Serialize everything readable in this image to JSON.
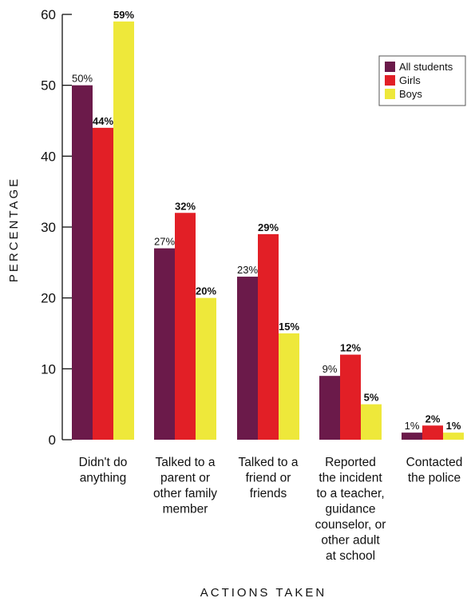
{
  "chart_data": {
    "type": "bar",
    "categories": [
      [
        "Didn't do",
        "anything"
      ],
      [
        "Talked to a",
        "parent or",
        "other family",
        "member"
      ],
      [
        "Talked to a",
        "friend or",
        "friends"
      ],
      [
        "Reported",
        "the incident",
        "to a teacher,",
        "guidance",
        "counselor, or",
        "other adult",
        "at school"
      ],
      [
        "Contacted",
        "the police"
      ]
    ],
    "series": [
      {
        "name": "All students",
        "color": "#6b1a4a",
        "values": [
          50,
          27,
          23,
          9,
          1
        ],
        "labels": [
          "50%",
          "27%",
          "23%",
          "9%",
          "1%"
        ],
        "bold_labels": false
      },
      {
        "name": "Girls",
        "color": "#e21f26",
        "values": [
          44,
          32,
          29,
          12,
          2
        ],
        "labels": [
          "44%",
          "32%",
          "29%",
          "12%",
          "2%"
        ],
        "bold_labels": true
      },
      {
        "name": "Boys",
        "color": "#eee83a",
        "values": [
          59,
          20,
          15,
          5,
          1
        ],
        "labels": [
          "59%",
          "20%",
          "15%",
          "5%",
          "1%"
        ],
        "bold_labels": true
      }
    ],
    "xlabel": "ACTIONS TAKEN",
    "ylabel": "PERCENTAGE",
    "ylim": [
      0,
      60
    ],
    "yticks": [
      "0",
      "10",
      "20",
      "30",
      "40",
      "50",
      "60"
    ],
    "legend_position": "top-right",
    "grid": false
  }
}
